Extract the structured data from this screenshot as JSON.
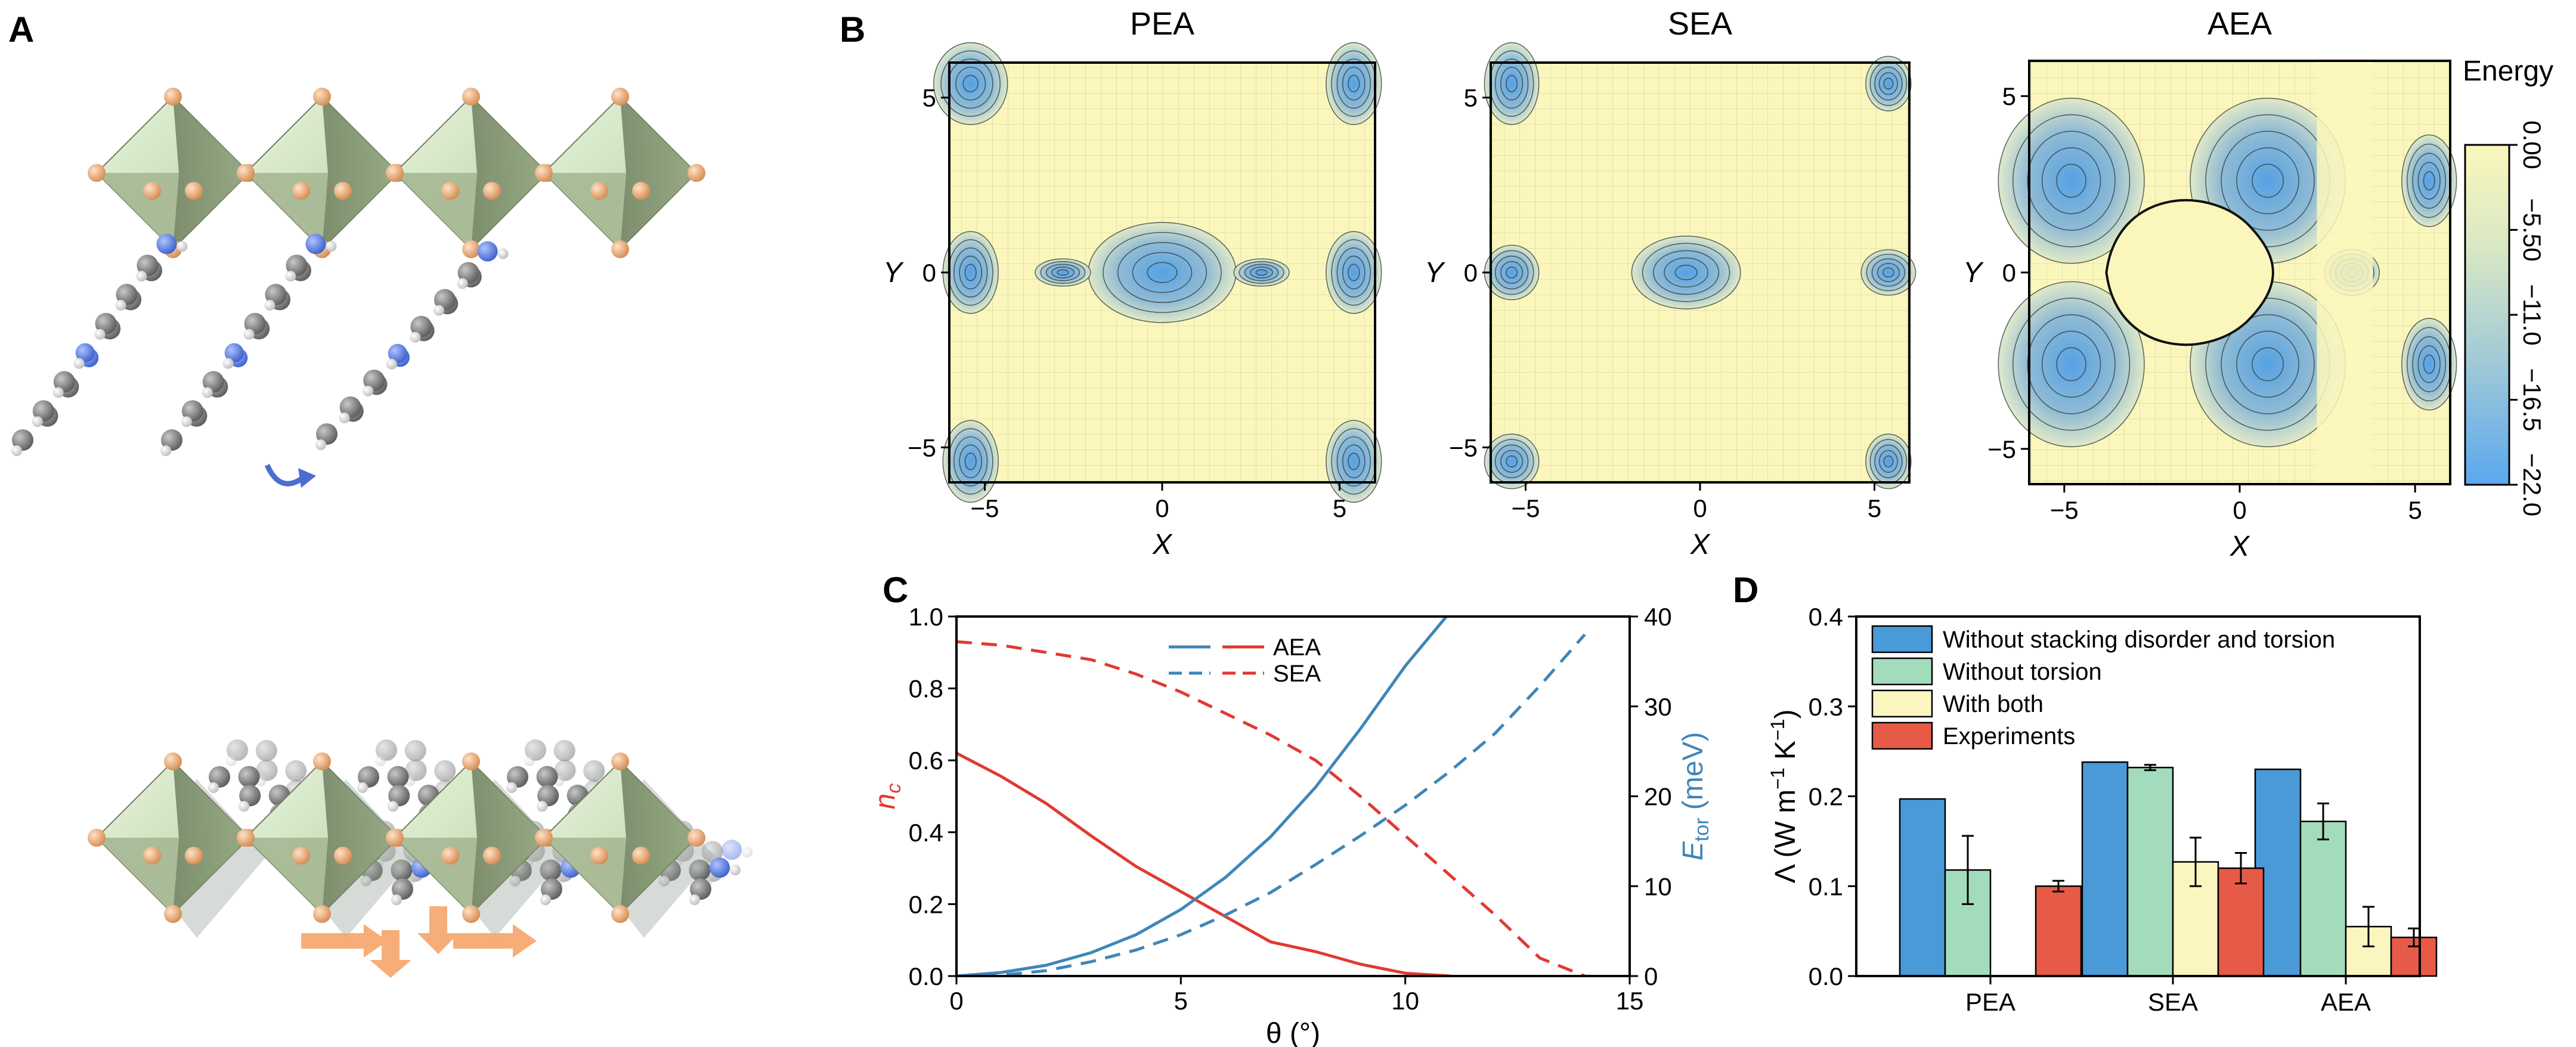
{
  "panels": {
    "A": "A",
    "B": "B",
    "C": "C",
    "D": "D"
  },
  "chart_data": [
    {
      "type": "heatmap",
      "panel": "B",
      "title": "PEA",
      "xlabel": "X",
      "ylabel": "Y",
      "xticks": [
        "−5",
        "0",
        "5"
      ],
      "yticks": [
        "5",
        "0",
        "−5"
      ],
      "xlim": [
        -6,
        6
      ],
      "ylim": [
        -6,
        6
      ]
    },
    {
      "type": "heatmap",
      "panel": "B",
      "title": "SEA",
      "xlabel": "X",
      "ylabel": "Y",
      "xticks": [
        "−5",
        "0",
        "5"
      ],
      "yticks": [
        "5",
        "0",
        "−5"
      ],
      "xlim": [
        -6,
        6
      ],
      "ylim": [
        -6,
        6
      ]
    },
    {
      "type": "heatmap",
      "panel": "B",
      "title": "AEA",
      "xlabel": "X",
      "ylabel": "Y",
      "xticks": [
        "−5",
        "0",
        "5"
      ],
      "yticks": [
        "5",
        "0",
        "−5"
      ],
      "xlim": [
        -6,
        6
      ],
      "ylim": [
        -6,
        6
      ],
      "colorbar": {
        "label": "Energy",
        "ticks": [
          "0.00",
          "−5.50",
          "−11.0",
          "−16.5",
          "−22.0"
        ],
        "range": [
          -22.0,
          0.0
        ],
        "colors": [
          "#5aa8ee",
          "#9fc8d8",
          "#d9e8c4",
          "#fbf7bc"
        ]
      }
    },
    {
      "type": "line",
      "panel": "C",
      "xlabel": "θ (°)",
      "ylabel_left": "n",
      "ylabel_left_sub": "c",
      "ylabel_right": "E",
      "ylabel_right_sub": "tor",
      "ylabel_right_unit": " (meV)",
      "xlim": [
        0,
        15
      ],
      "ylim_left": [
        0,
        1.0
      ],
      "ylim_right": [
        0,
        40
      ],
      "xticks": [
        "0",
        "5",
        "10",
        "15"
      ],
      "yticks_left": [
        "0.0",
        "0.2",
        "0.4",
        "0.6",
        "0.8",
        "1.0"
      ],
      "yticks_right": [
        "0",
        "10",
        "20",
        "30",
        "40"
      ],
      "legend": [
        "AEA",
        "SEA"
      ],
      "legend_position": "top-right",
      "series": [
        {
          "name": "AEA",
          "axis": "left",
          "color": "#e03a30",
          "dash": "solid",
          "x": [
            0,
            1,
            2,
            3,
            4,
            5,
            6,
            7,
            8,
            9,
            10,
            11
          ],
          "y": [
            0.62,
            0.555,
            0.48,
            0.39,
            0.305,
            0.235,
            0.165,
            0.095,
            0.068,
            0.033,
            0.008,
            0.0
          ]
        },
        {
          "name": "SEA",
          "axis": "left",
          "color": "#e03a30",
          "dash": "dashed",
          "x": [
            0,
            1,
            2,
            3,
            4,
            5,
            6,
            7,
            8,
            9,
            10,
            11,
            12,
            13,
            14
          ],
          "y": [
            0.93,
            0.92,
            0.9,
            0.88,
            0.84,
            0.79,
            0.73,
            0.67,
            0.6,
            0.5,
            0.39,
            0.28,
            0.17,
            0.05,
            0.0
          ]
        },
        {
          "name": "AEA",
          "axis": "right",
          "color": "#3f86b8",
          "dash": "solid",
          "x": [
            0,
            1,
            2,
            3,
            4,
            5,
            6,
            7,
            8,
            9,
            10,
            11
          ],
          "y": [
            0,
            0.4,
            1.2,
            2.6,
            4.6,
            7.4,
            11.0,
            15.5,
            21.0,
            27.5,
            34.5,
            40.5
          ]
        },
        {
          "name": "SEA",
          "axis": "right",
          "color": "#3f86b8",
          "dash": "dashed",
          "x": [
            0,
            1,
            2,
            3,
            4,
            5,
            6,
            7,
            8,
            9,
            10,
            11,
            12,
            13,
            14
          ],
          "y": [
            0,
            0.1,
            0.6,
            1.6,
            2.9,
            4.6,
            6.8,
            9.3,
            12.4,
            15.6,
            19.0,
            22.8,
            27.0,
            32.3,
            38.0
          ]
        }
      ]
    },
    {
      "type": "bar",
      "panel": "D",
      "ylabel": "Λ (W m",
      "ylabel_sup1": "−1",
      "ylabel_mid": " K",
      "ylabel_sup2": "−1",
      "ylabel_end": ")",
      "ylim": [
        0,
        0.4
      ],
      "yticks": [
        "0.0",
        "0.1",
        "0.2",
        "0.3",
        "0.4"
      ],
      "categories": [
        "PEA",
        "SEA",
        "AEA"
      ],
      "legend_position": "top-left",
      "series": [
        {
          "name": "Without stacking disorder and torsion",
          "color": "#4a9ad8",
          "values": [
            0.197,
            0.238,
            0.23
          ],
          "errors": [
            null,
            null,
            null
          ]
        },
        {
          "name": "Without torsion",
          "color": "#a3dcbc",
          "values": [
            0.118,
            0.232,
            0.172
          ],
          "errors": [
            0.038,
            0.003,
            0.02
          ]
        },
        {
          "name": "With both",
          "color": "#fbf6c0",
          "values": [
            null,
            0.127,
            0.055
          ],
          "errors": [
            null,
            0.027,
            0.022
          ]
        },
        {
          "name": "Experiments",
          "color": "#e85a48",
          "values": [
            0.1,
            0.12,
            0.043
          ],
          "errors": [
            0.006,
            0.017,
            0.01
          ]
        }
      ]
    }
  ]
}
